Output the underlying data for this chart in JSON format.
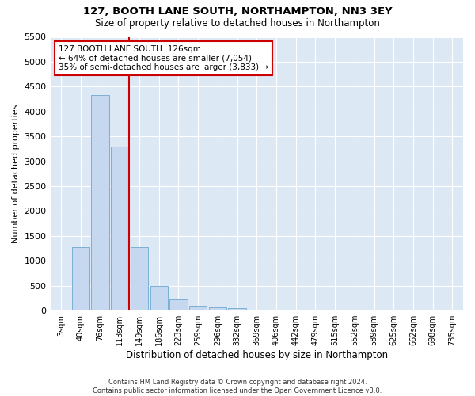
{
  "title": "127, BOOTH LANE SOUTH, NORTHAMPTON, NN3 3EY",
  "subtitle": "Size of property relative to detached houses in Northampton",
  "xlabel": "Distribution of detached houses by size in Northampton",
  "ylabel": "Number of detached properties",
  "bar_color": "#c5d8f0",
  "bar_edge_color": "#7aafd4",
  "background_color": "#dde8f5",
  "grid_color": "#ffffff",
  "categories": [
    "3sqm",
    "40sqm",
    "76sqm",
    "113sqm",
    "149sqm",
    "186sqm",
    "223sqm",
    "259sqm",
    "296sqm",
    "332sqm",
    "369sqm",
    "406sqm",
    "442sqm",
    "479sqm",
    "515sqm",
    "552sqm",
    "589sqm",
    "625sqm",
    "662sqm",
    "698sqm",
    "735sqm"
  ],
  "values": [
    0,
    1270,
    4330,
    3300,
    1280,
    490,
    220,
    90,
    60,
    50,
    0,
    0,
    0,
    0,
    0,
    0,
    0,
    0,
    0,
    0,
    0
  ],
  "ylim": [
    0,
    5500
  ],
  "yticks": [
    0,
    500,
    1000,
    1500,
    2000,
    2500,
    3000,
    3500,
    4000,
    4500,
    5000,
    5500
  ],
  "vline_color": "#cc0000",
  "vline_position": 3.47,
  "annotation_text": "127 BOOTH LANE SOUTH: 126sqm\n← 64% of detached houses are smaller (7,054)\n35% of semi-detached houses are larger (3,833) →",
  "annotation_box_color": "#ffffff",
  "annotation_box_edge": "#cc0000",
  "footer": "Contains HM Land Registry data © Crown copyright and database right 2024.\nContains public sector information licensed under the Open Government Licence v3.0.",
  "fig_bg": "#ffffff"
}
